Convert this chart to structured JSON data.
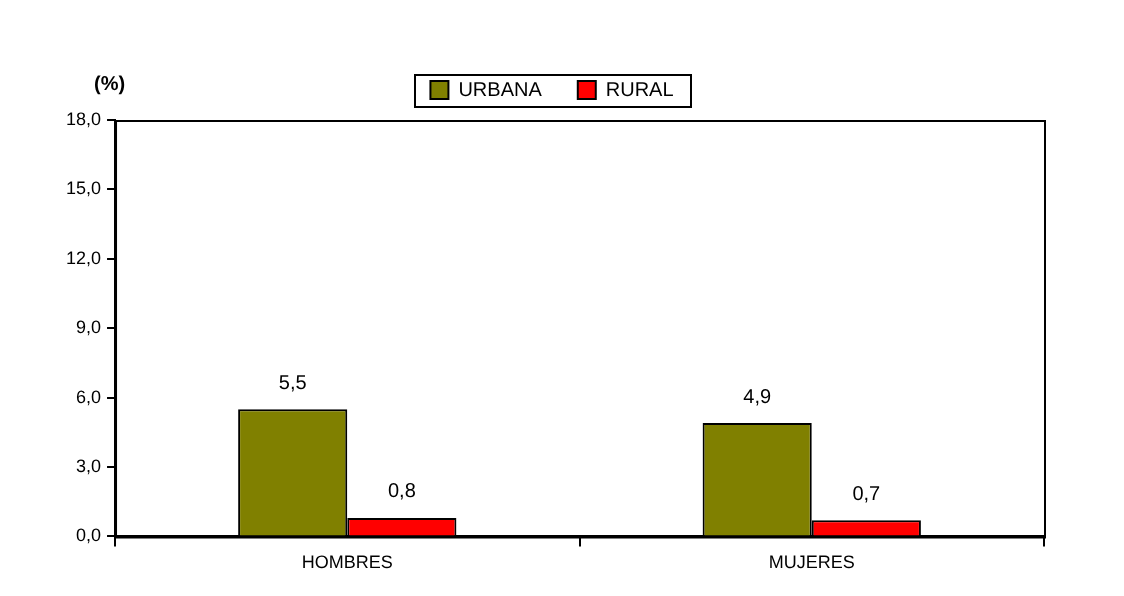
{
  "chart_data": {
    "type": "bar",
    "ylabel": "(%)",
    "categories": [
      "HOMBRES",
      "MUJERES"
    ],
    "series": [
      {
        "name": "URBANA",
        "color": "#808000",
        "values": [
          5.5,
          4.9
        ],
        "value_labels": [
          "5,5",
          "4,9"
        ]
      },
      {
        "name": "RURAL",
        "color": "#ff0000",
        "values": [
          0.8,
          0.7
        ],
        "value_labels": [
          "0,8",
          "0,7"
        ]
      }
    ],
    "ylim": [
      0,
      18
    ],
    "yticks": [
      {
        "value": 0,
        "label": "0,0"
      },
      {
        "value": 3,
        "label": "3,0"
      },
      {
        "value": 6,
        "label": "6,0"
      },
      {
        "value": 9,
        "label": "9,0"
      },
      {
        "value": 12,
        "label": "12,0"
      },
      {
        "value": 15,
        "label": "15,0"
      },
      {
        "value": 18,
        "label": "18,0"
      }
    ],
    "grid": false,
    "legend": "top"
  }
}
